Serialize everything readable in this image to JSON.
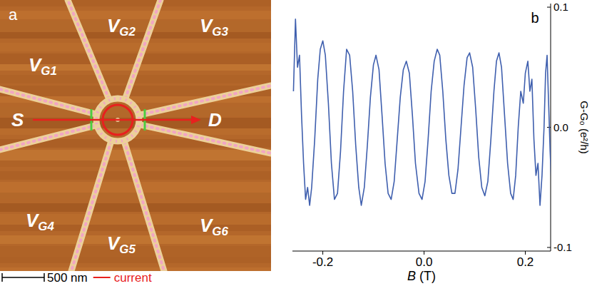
{
  "image": {
    "label": "a",
    "gates": [
      "VG1",
      "VG2",
      "VG3",
      "VG4",
      "VG5",
      "VG6"
    ],
    "source": "S",
    "drain": "D",
    "scale_bar": "500 nm",
    "current_legend": "current"
  },
  "chart_data": {
    "type": "line",
    "panel_label": "b",
    "xlabel": "B (T)",
    "ylabel": "G-G₀ (e²/h)",
    "x": [
      -0.258,
      -0.254,
      -0.25,
      -0.246,
      -0.242,
      -0.238,
      -0.234,
      -0.23,
      -0.226,
      -0.222,
      -0.216,
      -0.21,
      -0.205,
      -0.2,
      -0.195,
      -0.189,
      -0.183,
      -0.177,
      -0.171,
      -0.165,
      -0.159,
      -0.153,
      -0.147,
      -0.141,
      -0.135,
      -0.129,
      -0.124,
      -0.118,
      -0.112,
      -0.106,
      -0.1,
      -0.095,
      -0.089,
      -0.083,
      -0.077,
      -0.071,
      -0.065,
      -0.059,
      -0.053,
      -0.047,
      -0.041,
      -0.035,
      -0.029,
      -0.023,
      -0.017,
      -0.01,
      -0.004,
      0.002,
      0.008,
      0.014,
      0.02,
      0.026,
      0.031,
      0.037,
      0.043,
      0.049,
      0.055,
      0.061,
      0.067,
      0.073,
      0.079,
      0.085,
      0.09,
      0.096,
      0.102,
      0.108,
      0.114,
      0.12,
      0.126,
      0.132,
      0.138,
      0.143,
      0.148,
      0.153,
      0.159,
      0.165,
      0.171,
      0.176,
      0.181,
      0.186,
      0.191,
      0.196,
      0.2,
      0.205,
      0.209,
      0.213,
      0.217,
      0.221,
      0.225,
      0.229,
      0.233,
      0.237,
      0.24,
      0.243,
      0.246,
      0.249,
      0.252
    ],
    "series": [
      {
        "color": "#3f5fae",
        "values": [
          0.03,
          0.09,
          0.05,
          0.06,
          0.01,
          -0.03,
          -0.06,
          -0.05,
          -0.065,
          -0.05,
          -0.01,
          0.04,
          0.065,
          0.072,
          0.06,
          0.02,
          -0.03,
          -0.06,
          -0.055,
          -0.02,
          0.03,
          0.065,
          0.06,
          0.03,
          -0.015,
          -0.05,
          -0.065,
          -0.05,
          -0.015,
          0.025,
          0.052,
          0.06,
          0.048,
          0.01,
          -0.03,
          -0.055,
          -0.06,
          -0.045,
          -0.01,
          0.025,
          0.048,
          0.055,
          0.045,
          0.01,
          -0.03,
          -0.055,
          -0.06,
          -0.045,
          -0.01,
          0.03,
          0.055,
          0.065,
          0.06,
          0.03,
          -0.01,
          -0.04,
          -0.055,
          -0.055,
          -0.035,
          0.0,
          0.035,
          0.058,
          0.062,
          0.05,
          0.015,
          -0.025,
          -0.05,
          -0.057,
          -0.045,
          -0.01,
          0.03,
          0.055,
          0.062,
          0.05,
          0.01,
          -0.03,
          -0.055,
          -0.06,
          -0.04,
          0.0,
          0.03,
          0.02,
          0.045,
          0.055,
          0.03,
          0.04,
          -0.01,
          -0.04,
          -0.03,
          -0.065,
          -0.04,
          0.0,
          0.045,
          0.06,
          0.02,
          -0.02,
          -0.05
        ]
      }
    ],
    "xlim": [
      -0.26,
      0.25
    ],
    "xticks": [
      -0.2,
      {
        "value": 0,
        "label": "0.0"
      },
      0.2
    ],
    "ylim": [
      -0.103,
      0.103
    ],
    "yticks": [
      {
        "value": -0.1,
        "label": "-0.1"
      },
      {
        "value": 0,
        "label": "0.0"
      },
      0.1
    ]
  }
}
